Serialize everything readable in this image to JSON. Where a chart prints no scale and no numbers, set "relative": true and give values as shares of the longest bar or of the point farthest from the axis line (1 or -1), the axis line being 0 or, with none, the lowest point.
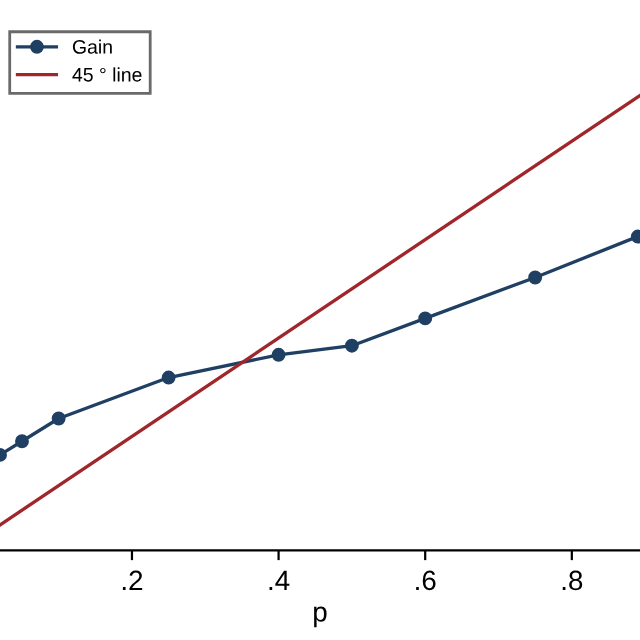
{
  "chart_data": {
    "type": "line",
    "relative": true,
    "xlabel": "p",
    "xlim": [
      0.02,
      0.893
    ],
    "xticks": [
      {
        "value": 0.2,
        "label": ".2"
      },
      {
        "value": 0.4,
        "label": ".4"
      },
      {
        "value": 0.6,
        "label": ".6"
      },
      {
        "value": 0.8,
        "label": ".8"
      }
    ],
    "series": [
      {
        "name": "Gain",
        "color": "#1f3f63",
        "marker": "circle",
        "x": [
          0.02,
          0.05,
          0.1,
          0.25,
          0.4,
          0.5,
          0.6,
          0.75,
          0.89
        ],
        "values": [
          0.21,
          0.24,
          0.29,
          0.38,
          0.43,
          0.45,
          0.51,
          0.6,
          0.69
        ]
      },
      {
        "name": "45 ° line",
        "color": "#a0262c",
        "marker": "none",
        "x": [
          0.02,
          0.893
        ],
        "values": [
          0.056,
          1.0
        ]
      }
    ],
    "legend": "top left"
  }
}
